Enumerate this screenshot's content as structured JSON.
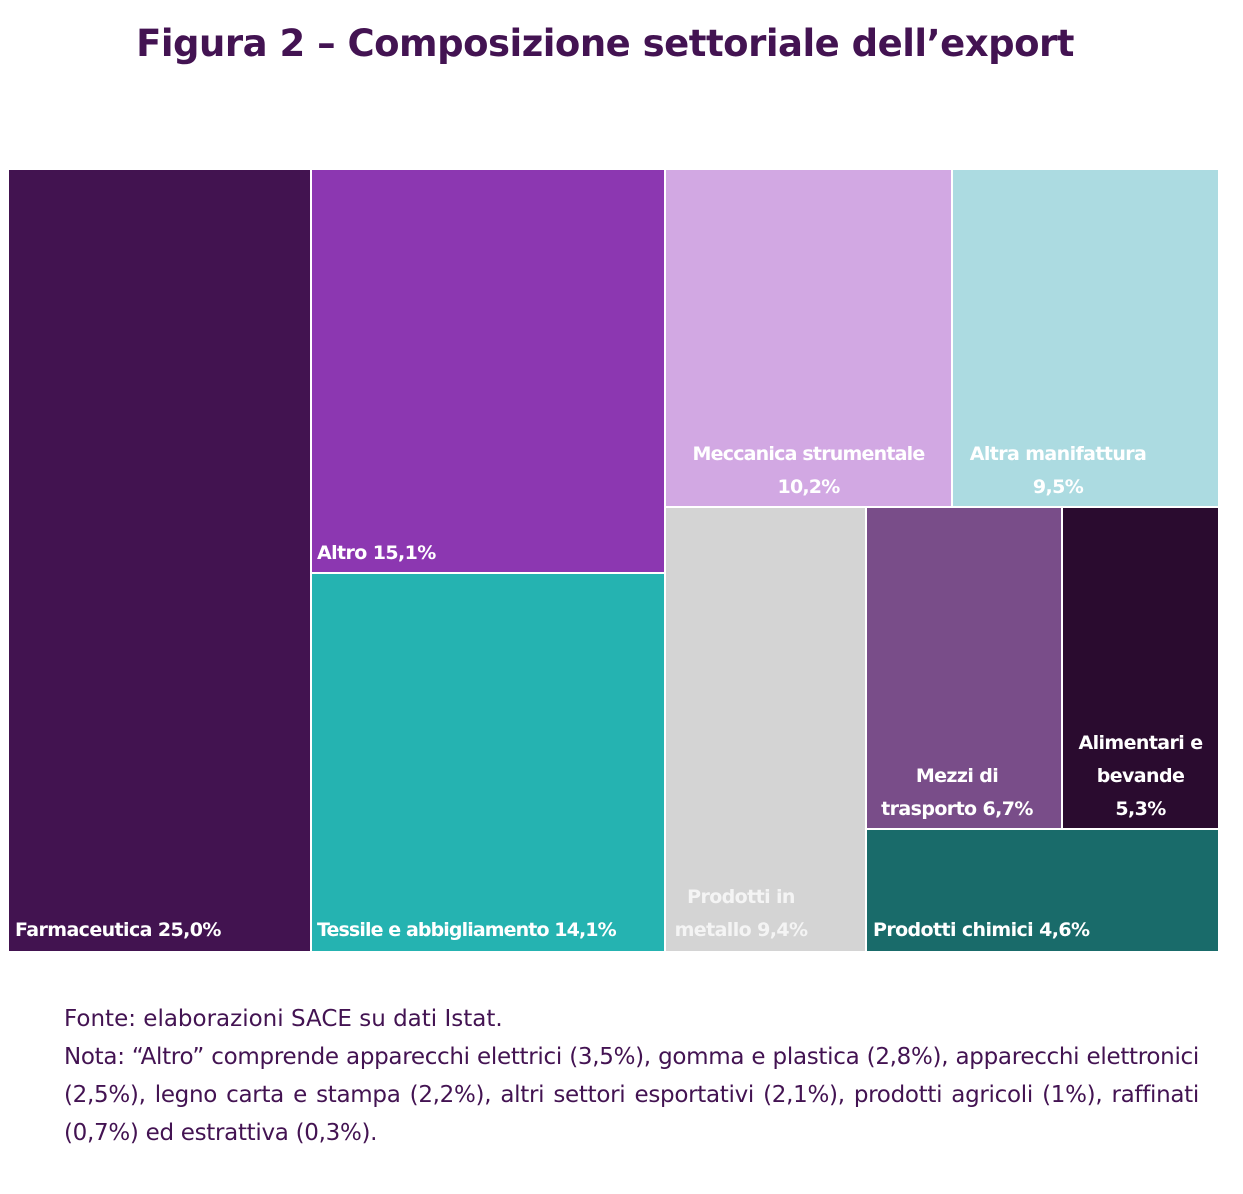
{
  "chart_data": {
    "type": "treemap",
    "title": "Figura 2 – Composizione settoriale dell’export",
    "unit": "%",
    "items": [
      {
        "name": "Farmaceutica",
        "value": 25.0,
        "label": "Farmaceutica 25,0%",
        "color": "#421350"
      },
      {
        "name": "Altro",
        "value": 15.1,
        "label": "Altro 15,1%",
        "color": "#8c37b1"
      },
      {
        "name": "Tessile e abbigliamento",
        "value": 14.1,
        "label": "Tessile e abbigliamento 14,1%",
        "color": "#25b3b1"
      },
      {
        "name": "Meccanica strumentale",
        "value": 10.2,
        "label_lines": [
          "Meccanica strumentale",
          "10,2%"
        ],
        "color": "#d2a8e3"
      },
      {
        "name": "Altra manifattura",
        "value": 9.5,
        "label_lines": [
          "Altra manifattura",
          "9,5%"
        ],
        "color": "#acdbe1"
      },
      {
        "name": "Prodotti in metallo",
        "value": 9.4,
        "label_lines": [
          "Prodotti in",
          "metallo 9,4%"
        ],
        "color": "#d4d4d4"
      },
      {
        "name": "Mezzi di trasporto",
        "value": 6.7,
        "label_lines": [
          "Mezzi di",
          "trasporto 6,7%"
        ],
        "color": "#794d89"
      },
      {
        "name": "Alimentari e bevande",
        "value": 5.3,
        "label_lines": [
          "Alimentari e",
          "bevande",
          "5,3%"
        ],
        "color": "#2a0b2f"
      },
      {
        "name": "Prodotti chimici",
        "value": 4.6,
        "label": "Prodotti chimici 4,6%",
        "color": "#196b6a"
      }
    ]
  },
  "notes": {
    "source": "Fonte: elaborazioni SACE su dati Istat.",
    "note": "Nota: “Altro” comprende apparecchi elettrici (3,5%), gomma e plastica (2,8%), apparecchi elettronici (2,5%), legno carta e stampa (2,2%), altri settori esportativi (2,1%), prodotti agricoli (1%), raffinati (0,7%) ed estrattiva (0,3%)."
  },
  "colors": {
    "title": "#431352",
    "notes_text": "#431352",
    "label_text": "#ffffff"
  }
}
